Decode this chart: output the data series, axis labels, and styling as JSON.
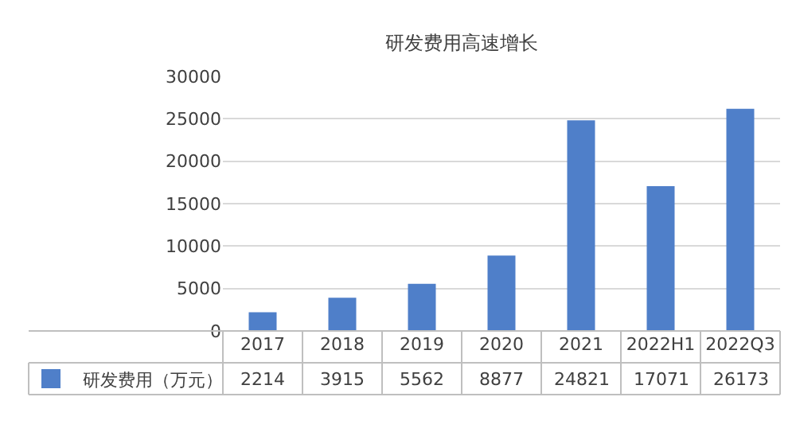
{
  "chart_data": {
    "type": "bar",
    "title": "研发费用高速增长",
    "categories": [
      "2017",
      "2018",
      "2019",
      "2020",
      "2021",
      "2022H1",
      "2022Q3"
    ],
    "series": [
      {
        "name": "研发费用（万元）",
        "color": "#4f7fc9",
        "values": [
          2214,
          3915,
          5562,
          8877,
          24821,
          17071,
          26173
        ]
      }
    ],
    "ylim": [
      0,
      30000
    ],
    "yticks": [
      0,
      5000,
      10000,
      15000,
      20000,
      25000,
      30000
    ],
    "grid": "y",
    "data_labels": true,
    "legend": "bottom"
  }
}
